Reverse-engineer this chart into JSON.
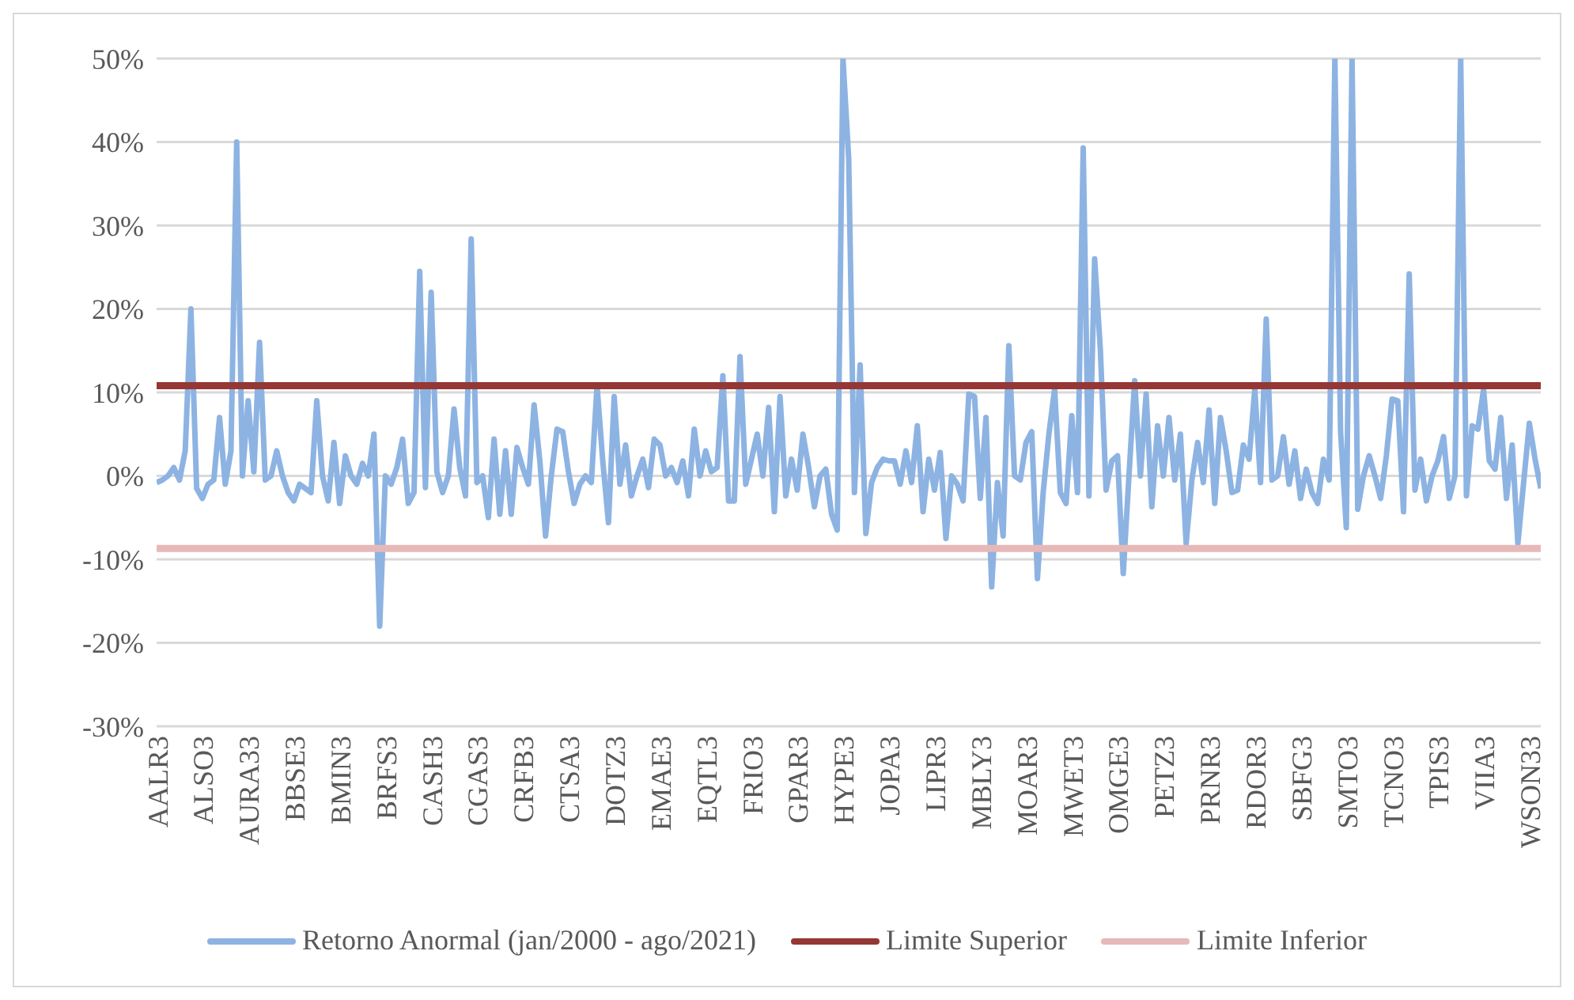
{
  "chart_data": {
    "type": "line",
    "categories": [
      "AALR3",
      null,
      null,
      null,
      null,
      null,
      null,
      null,
      "ALSO3",
      null,
      null,
      null,
      null,
      null,
      null,
      null,
      "AURA33",
      null,
      null,
      null,
      null,
      null,
      null,
      null,
      "BBSE3",
      null,
      null,
      null,
      null,
      null,
      null,
      null,
      "BMIN3",
      null,
      null,
      null,
      null,
      null,
      null,
      null,
      "BRFS3",
      null,
      null,
      null,
      null,
      null,
      null,
      null,
      "CASH3",
      null,
      null,
      null,
      null,
      null,
      null,
      null,
      "CGAS3",
      null,
      null,
      null,
      null,
      null,
      null,
      null,
      "CRFB3",
      null,
      null,
      null,
      null,
      null,
      null,
      null,
      "CTSA3",
      null,
      null,
      null,
      null,
      null,
      null,
      null,
      "DOTZ3",
      null,
      null,
      null,
      null,
      null,
      null,
      null,
      "EMAE3",
      null,
      null,
      null,
      null,
      null,
      null,
      null,
      "EQTL3",
      null,
      null,
      null,
      null,
      null,
      null,
      null,
      "FRIO3",
      null,
      null,
      null,
      null,
      null,
      null,
      null,
      "GPAR3",
      null,
      null,
      null,
      null,
      null,
      null,
      null,
      "HYPE3",
      null,
      null,
      null,
      null,
      null,
      null,
      null,
      "JOPA3",
      null,
      null,
      null,
      null,
      null,
      null,
      null,
      "LIPR3",
      null,
      null,
      null,
      null,
      null,
      null,
      null,
      "MBLY3",
      null,
      null,
      null,
      null,
      null,
      null,
      null,
      "MOAR3",
      null,
      null,
      null,
      null,
      null,
      null,
      null,
      "MWET3",
      null,
      null,
      null,
      null,
      null,
      null,
      null,
      "OMGE3",
      null,
      null,
      null,
      null,
      null,
      null,
      null,
      "PETZ3",
      null,
      null,
      null,
      null,
      null,
      null,
      null,
      "PRNR3",
      null,
      null,
      null,
      null,
      null,
      null,
      null,
      "RDOR3",
      null,
      null,
      null,
      null,
      null,
      null,
      null,
      "SBFG3",
      null,
      null,
      null,
      null,
      null,
      null,
      null,
      "SMTO3",
      null,
      null,
      null,
      null,
      null,
      null,
      null,
      "TCNO3",
      null,
      null,
      null,
      null,
      null,
      null,
      null,
      "TPIS3",
      null,
      null,
      null,
      null,
      null,
      null,
      null,
      "VIIA3",
      null,
      null,
      null,
      null,
      null,
      null,
      null,
      "WSON33",
      null,
      null
    ],
    "series": [
      {
        "name": "Retorno Anormal (jan/2000 - ago/2021)",
        "color": "#8db3e2",
        "values": [
          -0.8,
          -0.5,
          0,
          1,
          -0.5,
          3,
          20,
          -1.5,
          -2.7,
          -1,
          -0.5,
          7,
          -1,
          3,
          40,
          0,
          9,
          0.5,
          16,
          -0.5,
          0,
          3,
          0,
          -2,
          -3,
          -1,
          -1.5,
          -2,
          9,
          0,
          -3,
          4,
          -3.3,
          2.4,
          0,
          -1,
          1.5,
          0,
          5,
          -18,
          0,
          -1,
          1,
          4.4,
          -3.3,
          -2,
          24.5,
          -1.4,
          22,
          0.5,
          -2,
          0,
          8,
          1,
          -2.4,
          28.4,
          -0.8,
          0,
          -5,
          4.4,
          -4.6,
          3,
          -4.6,
          3.4,
          1,
          -1,
          8.5,
          1.8,
          -7.2,
          0,
          5.6,
          5.3,
          0.5,
          -3.3,
          -1,
          0,
          -0.8,
          10.8,
          1.8,
          -5.6,
          9.5,
          -1,
          3.7,
          -2.4,
          0,
          2,
          -1.4,
          4.4,
          3.7,
          0,
          1,
          -0.8,
          1.8,
          -2.4,
          5.6,
          0,
          3,
          0.5,
          1,
          12,
          -3,
          -3,
          14.3,
          -1,
          2,
          5,
          0,
          8.2,
          -4.3,
          9.5,
          -2.4,
          2,
          -1.7,
          5,
          1,
          -3.7,
          0,
          0.8,
          -4.6,
          -6.5,
          50,
          38,
          -2,
          13.3,
          -6.9,
          -0.8,
          1,
          2,
          1.8,
          1.8,
          -1,
          3,
          -0.8,
          6,
          -4.3,
          2,
          -1.7,
          2.8,
          -7.5,
          0,
          -1,
          -3,
          9.8,
          9.5,
          -2.7,
          7,
          -13.3,
          -0.8,
          -7.2,
          15.6,
          0,
          -0.5,
          4,
          5.3,
          -12.3,
          -2,
          5,
          10.4,
          -2,
          -3.3,
          7.2,
          -2,
          39.3,
          -2.4,
          26,
          15.1,
          -1.7,
          1.8,
          2.4,
          -11.7,
          0,
          11.4,
          0,
          9.8,
          -3.7,
          6,
          0,
          7,
          -0.5,
          5,
          -8.1,
          -0.5,
          4,
          -0.8,
          7.9,
          -3.3,
          7,
          3,
          -2,
          -1.7,
          3.7,
          2,
          10.4,
          -0.8,
          18.8,
          -0.5,
          0,
          4.7,
          -1,
          3,
          -2.7,
          0.8,
          -2,
          -3.3,
          2,
          -0.5,
          50,
          5.3,
          -6.2,
          50,
          -4,
          0,
          2.4,
          0,
          -2.7,
          2.4,
          9.2,
          9,
          -4.3,
          24.2,
          -1.7,
          2,
          -3,
          0,
          1.8,
          4.7,
          -2.7,
          0,
          50,
          -2.4,
          6,
          5.6,
          10.4,
          1.8,
          0.8,
          7,
          -2.7,
          3.7,
          -8.1,
          -0.8,
          6.3,
          2,
          -1.5
        ]
      }
    ],
    "ref_lines": [
      {
        "axis": "y",
        "value": 10.8,
        "label": "Limite Superior",
        "color": "#953735"
      },
      {
        "axis": "y",
        "value": -8.7,
        "label": "Limite Inferior",
        "color": "#e6b9b8"
      }
    ],
    "ylim": [
      -30,
      50
    ],
    "yticks": [
      {
        "value": -30,
        "label": "-30%"
      },
      {
        "value": -20,
        "label": "-20%"
      },
      {
        "value": -10,
        "label": "-10%"
      },
      {
        "value": 0,
        "label": "0%"
      },
      {
        "value": 10,
        "label": "10%"
      },
      {
        "value": 20,
        "label": "20%"
      },
      {
        "value": 30,
        "label": "30%"
      },
      {
        "value": 40,
        "label": "40%"
      },
      {
        "value": 50,
        "label": "50%"
      }
    ],
    "grid": "y",
    "legend": "bottom",
    "marker": "none",
    "line_style": "solid"
  }
}
